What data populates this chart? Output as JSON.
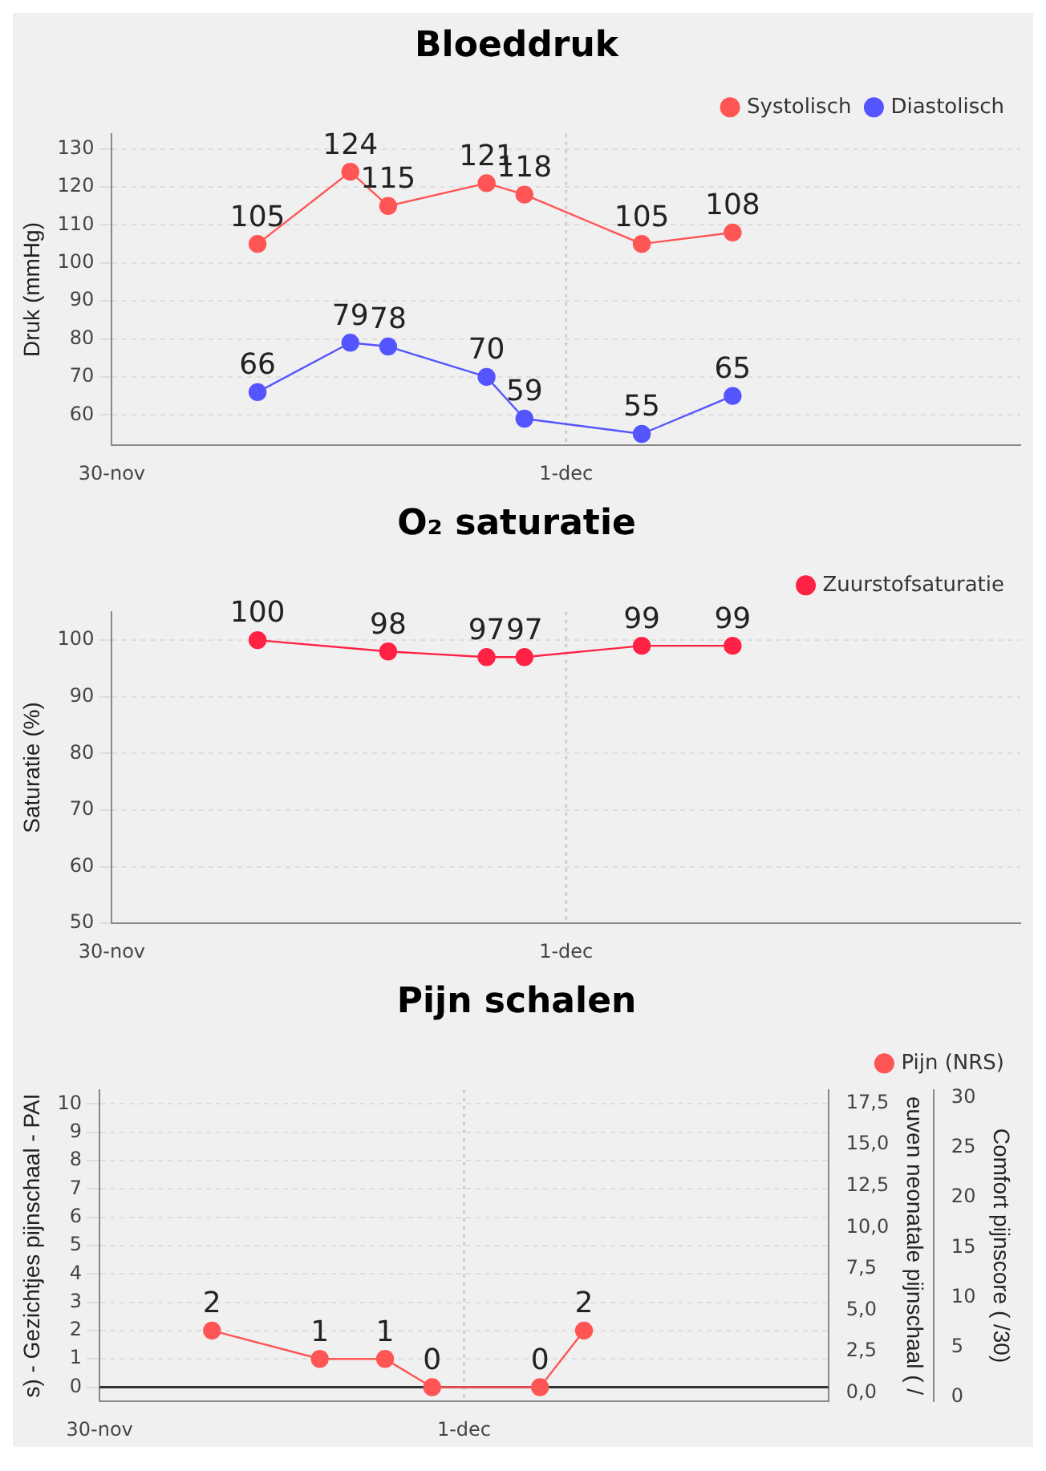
{
  "chart_data": [
    {
      "type": "line",
      "title": "Bloeddruk",
      "ylabel": "Druk (mmHg)",
      "xlim": [
        "--11-30",
        "--12-02"
      ],
      "xticks": [
        {
          "value": "--11-30",
          "label": "30-nov"
        },
        {
          "value": "--12-01",
          "label": "1-dec"
        }
      ],
      "ylim": [
        52,
        134
      ],
      "yticks": [
        60,
        70,
        80,
        90,
        100,
        110,
        120,
        130
      ],
      "x": [
        "--11-30T07:42",
        "--11-30T12:36",
        "--11-30T14:36",
        "--11-30T19:48",
        "--11-30T21:48",
        "--12-01T04:00",
        "--12-01T08:48"
      ],
      "series": [
        {
          "name": "Systolisch",
          "color": "#ff5555",
          "values": [
            105,
            124,
            115,
            121,
            118,
            105,
            108
          ]
        },
        {
          "name": "Diastolisch",
          "color": "#5555ff",
          "values": [
            66,
            79,
            78,
            70,
            59,
            55,
            65
          ]
        }
      ],
      "ref_lines": [
        {
          "axis": "x",
          "value": "--12-01",
          "color": "#cccccc",
          "line_style": "dotted"
        }
      ],
      "data_labels": true,
      "grid": "y",
      "legend": "top right",
      "marker": "circle",
      "line_style": "solid"
    },
    {
      "type": "line",
      "title": "O₂ saturatie",
      "ylabel": "Saturatie (%)",
      "xlim": [
        "--11-30",
        "--12-02"
      ],
      "xticks": [
        {
          "value": "--11-30",
          "label": "30-nov"
        },
        {
          "value": "--12-01",
          "label": "1-dec"
        }
      ],
      "ylim": [
        50,
        105
      ],
      "yticks": [
        50,
        60,
        70,
        80,
        90,
        100
      ],
      "x": [
        "--11-30T07:42",
        "--11-30T14:36",
        "--11-30T19:48",
        "--11-30T21:48",
        "--12-01T04:00",
        "--12-01T08:48"
      ],
      "series": [
        {
          "name": "Zuurstofsaturatie",
          "color": "#ff2244",
          "values": [
            100,
            98,
            97,
            97,
            99,
            99
          ]
        }
      ],
      "ref_lines": [
        {
          "axis": "x",
          "value": "--12-01",
          "color": "#cccccc",
          "line_style": "dotted"
        }
      ],
      "data_labels": true,
      "grid": "y",
      "legend": "top right",
      "marker": "circle",
      "line_style": "solid"
    },
    {
      "type": "line",
      "title": "Pijn schalen",
      "ylabel": "s) - Gezichtjes pijnschaal - PAI",
      "y2label": "euven neonatale pijnschaal ( /",
      "y3label": "Comfort pijnscore ( /30)",
      "xlim": [
        "--11-30",
        "--12-02"
      ],
      "xticks": [
        {
          "value": "--11-30",
          "label": "30-nov"
        },
        {
          "value": "--12-01",
          "label": "1-dec"
        }
      ],
      "ylim": [
        -0.5,
        10.5
      ],
      "yticks": [
        0,
        1,
        2,
        3,
        4,
        5,
        6,
        7,
        8,
        9,
        10
      ],
      "y2lim": [
        -0.5,
        18.3
      ],
      "y2ticks": [
        {
          "value": 0,
          "label": "0,0"
        },
        {
          "value": 2.5,
          "label": "2,5"
        },
        {
          "value": 5,
          "label": "5,0"
        },
        {
          "value": 7.5,
          "label": "7,5"
        },
        {
          "value": 10,
          "label": "10,0"
        },
        {
          "value": 12.5,
          "label": "12,5"
        },
        {
          "value": 15,
          "label": "15,0"
        },
        {
          "value": 17.5,
          "label": "17,5"
        }
      ],
      "y3lim": [
        -0.4,
        30.8
      ],
      "y3ticks": [
        0,
        5,
        10,
        15,
        20,
        25,
        30
      ],
      "x": [
        "--11-30T07:24",
        "--11-30T14:30",
        "--11-30T18:48",
        "--11-30T21:54",
        "--12-01T05:00",
        "--12-01T07:54"
      ],
      "series": [
        {
          "name": "Pijn (NRS)",
          "color": "#ff5555",
          "values": [
            2,
            1,
            1,
            0,
            0,
            2
          ]
        }
      ],
      "ref_lines": [
        {
          "axis": "x",
          "value": "--12-01",
          "color": "#cccccc",
          "line_style": "dotted"
        },
        {
          "axis": "y",
          "value": 0,
          "color": "#333333"
        }
      ],
      "data_labels": true,
      "grid": "y",
      "legend": "top right",
      "marker": "circle",
      "line_style": "solid"
    }
  ]
}
